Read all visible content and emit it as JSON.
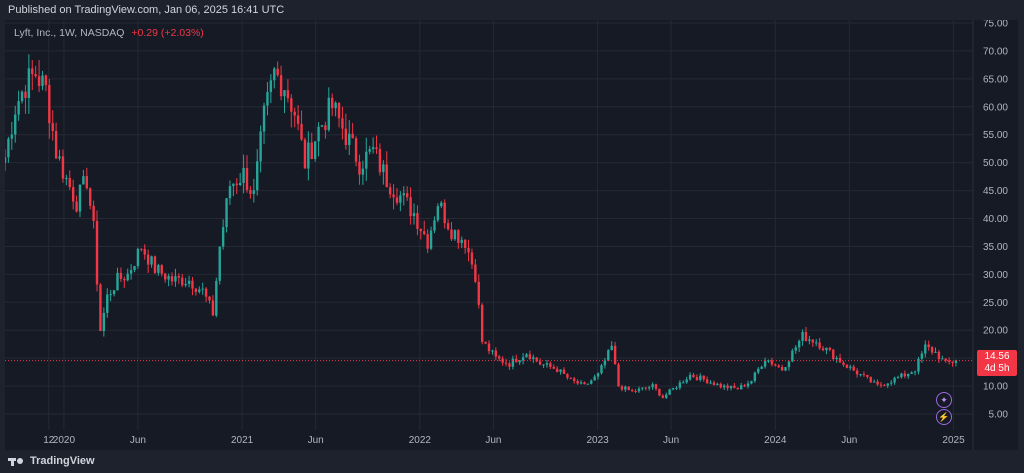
{
  "header": {
    "published": "Published on TradingView.com, Jan 06, 2025 16:41 UTC"
  },
  "legend": {
    "symbol": "Lyft, Inc., 1W, NASDAQ",
    "change": "+0.29 (+2.03%)"
  },
  "price_label": {
    "price": "14.56",
    "countdown": "4d 5h"
  },
  "footer": {
    "brand": "TradingView"
  },
  "colors": {
    "up": "#26a69a",
    "down": "#f23645",
    "background": "#161a25",
    "grid": "#252933",
    "text": "#b2b5be",
    "price_line": "#f23645",
    "event_icon": "#9c6ade"
  },
  "icons": [
    "tradingview-logo-icon",
    "event-flag-icon",
    "dividend-icon"
  ],
  "chart_data": {
    "type": "candlestick",
    "title": "",
    "xlabel": "",
    "ylabel": "",
    "y_axis_side": "right",
    "ylim": [
      0,
      75
    ],
    "y_ticks": [
      5,
      10,
      15,
      20,
      25,
      30,
      35,
      40,
      45,
      50,
      55,
      60,
      65,
      70,
      75
    ],
    "y_tick_labels": [
      "5.00",
      "10.00",
      "15.00",
      "20.00",
      "25.00",
      "30.00",
      "35.00",
      "40.00",
      "45.00",
      "50.00",
      "55.00",
      "60.00",
      "65.00",
      "70.00",
      "75.00"
    ],
    "x_tick_labels": [
      {
        "label": "12",
        "date": "2019-12-01"
      },
      {
        "label": "2020",
        "date": "2020-01-01"
      },
      {
        "label": "Jun",
        "date": "2020-06-01"
      },
      {
        "label": "2021",
        "date": "2021-01-01"
      },
      {
        "label": "Jun",
        "date": "2021-06-01"
      },
      {
        "label": "2022",
        "date": "2022-01-01"
      },
      {
        "label": "Jun",
        "date": "2022-06-01"
      },
      {
        "label": "2023",
        "date": "2023-01-01"
      },
      {
        "label": "Jun",
        "date": "2023-06-01"
      },
      {
        "label": "2024",
        "date": "2024-01-01"
      },
      {
        "label": "Jun",
        "date": "2024-06-01"
      },
      {
        "label": "2025",
        "date": "2025-01-01"
      }
    ],
    "x_range": [
      "2019-09-02",
      "2025-02-10"
    ],
    "grid": true,
    "last_price": 14.56,
    "price_line": true,
    "series": [
      {
        "name": "Lyft, Inc.",
        "interval": "1W",
        "close_path": [
          [
            "2019-09-02",
            51
          ],
          [
            "2019-09-23",
            60
          ],
          [
            "2019-10-14",
            64
          ],
          [
            "2019-11-04",
            66
          ],
          [
            "2019-11-25",
            63
          ],
          [
            "2019-12-16",
            52
          ],
          [
            "2020-01-06",
            47
          ],
          [
            "2020-01-27",
            43
          ],
          [
            "2020-02-17",
            47
          ],
          [
            "2020-03-02",
            38
          ],
          [
            "2020-03-16",
            20
          ],
          [
            "2020-03-30",
            26
          ],
          [
            "2020-04-20",
            29
          ],
          [
            "2020-05-11",
            30
          ],
          [
            "2020-06-08",
            35
          ],
          [
            "2020-07-06",
            31
          ],
          [
            "2020-08-10",
            29
          ],
          [
            "2020-09-14",
            29
          ],
          [
            "2020-10-12",
            27
          ],
          [
            "2020-11-02",
            23
          ],
          [
            "2020-11-16",
            35
          ],
          [
            "2020-12-07",
            46
          ],
          [
            "2021-01-04",
            48
          ],
          [
            "2021-01-25",
            44
          ],
          [
            "2021-02-15",
            58
          ],
          [
            "2021-03-08",
            66
          ],
          [
            "2021-03-29",
            64
          ],
          [
            "2021-04-19",
            59
          ],
          [
            "2021-05-10",
            50
          ],
          [
            "2021-06-07",
            56
          ],
          [
            "2021-07-05",
            60
          ],
          [
            "2021-08-02",
            55
          ],
          [
            "2021-08-30",
            50
          ],
          [
            "2021-09-27",
            52
          ],
          [
            "2021-10-25",
            47
          ],
          [
            "2021-11-22",
            44
          ],
          [
            "2021-12-20",
            41
          ],
          [
            "2022-01-17",
            36
          ],
          [
            "2022-02-07",
            43
          ],
          [
            "2022-03-07",
            38
          ],
          [
            "2022-04-04",
            36
          ],
          [
            "2022-04-25",
            30
          ],
          [
            "2022-05-09",
            18
          ],
          [
            "2022-06-06",
            15
          ],
          [
            "2022-07-04",
            14
          ],
          [
            "2022-08-08",
            16
          ],
          [
            "2022-09-05",
            14
          ],
          [
            "2022-10-10",
            13
          ],
          [
            "2022-11-07",
            11
          ],
          [
            "2022-12-05",
            10
          ],
          [
            "2023-01-02",
            12
          ],
          [
            "2023-01-30",
            17
          ],
          [
            "2023-02-13",
            10
          ],
          [
            "2023-03-13",
            9
          ],
          [
            "2023-04-24",
            10
          ],
          [
            "2023-05-15",
            8
          ],
          [
            "2023-06-12",
            10
          ],
          [
            "2023-07-10",
            12
          ],
          [
            "2023-08-14",
            11
          ],
          [
            "2023-09-11",
            10
          ],
          [
            "2023-10-16",
            9.5
          ],
          [
            "2023-11-13",
            11
          ],
          [
            "2023-12-11",
            15
          ],
          [
            "2024-01-15",
            13
          ],
          [
            "2024-02-12",
            17
          ],
          [
            "2024-02-26",
            19
          ],
          [
            "2024-03-25",
            18
          ],
          [
            "2024-04-22",
            16
          ],
          [
            "2024-05-20",
            14
          ],
          [
            "2024-06-24",
            12
          ],
          [
            "2024-07-29",
            10
          ],
          [
            "2024-08-26",
            11
          ],
          [
            "2024-09-23",
            12
          ],
          [
            "2024-10-14",
            13
          ],
          [
            "2024-11-04",
            17
          ],
          [
            "2024-11-25",
            16
          ],
          [
            "2024-12-16",
            14
          ],
          [
            "2025-01-06",
            14.56
          ]
        ]
      }
    ]
  }
}
